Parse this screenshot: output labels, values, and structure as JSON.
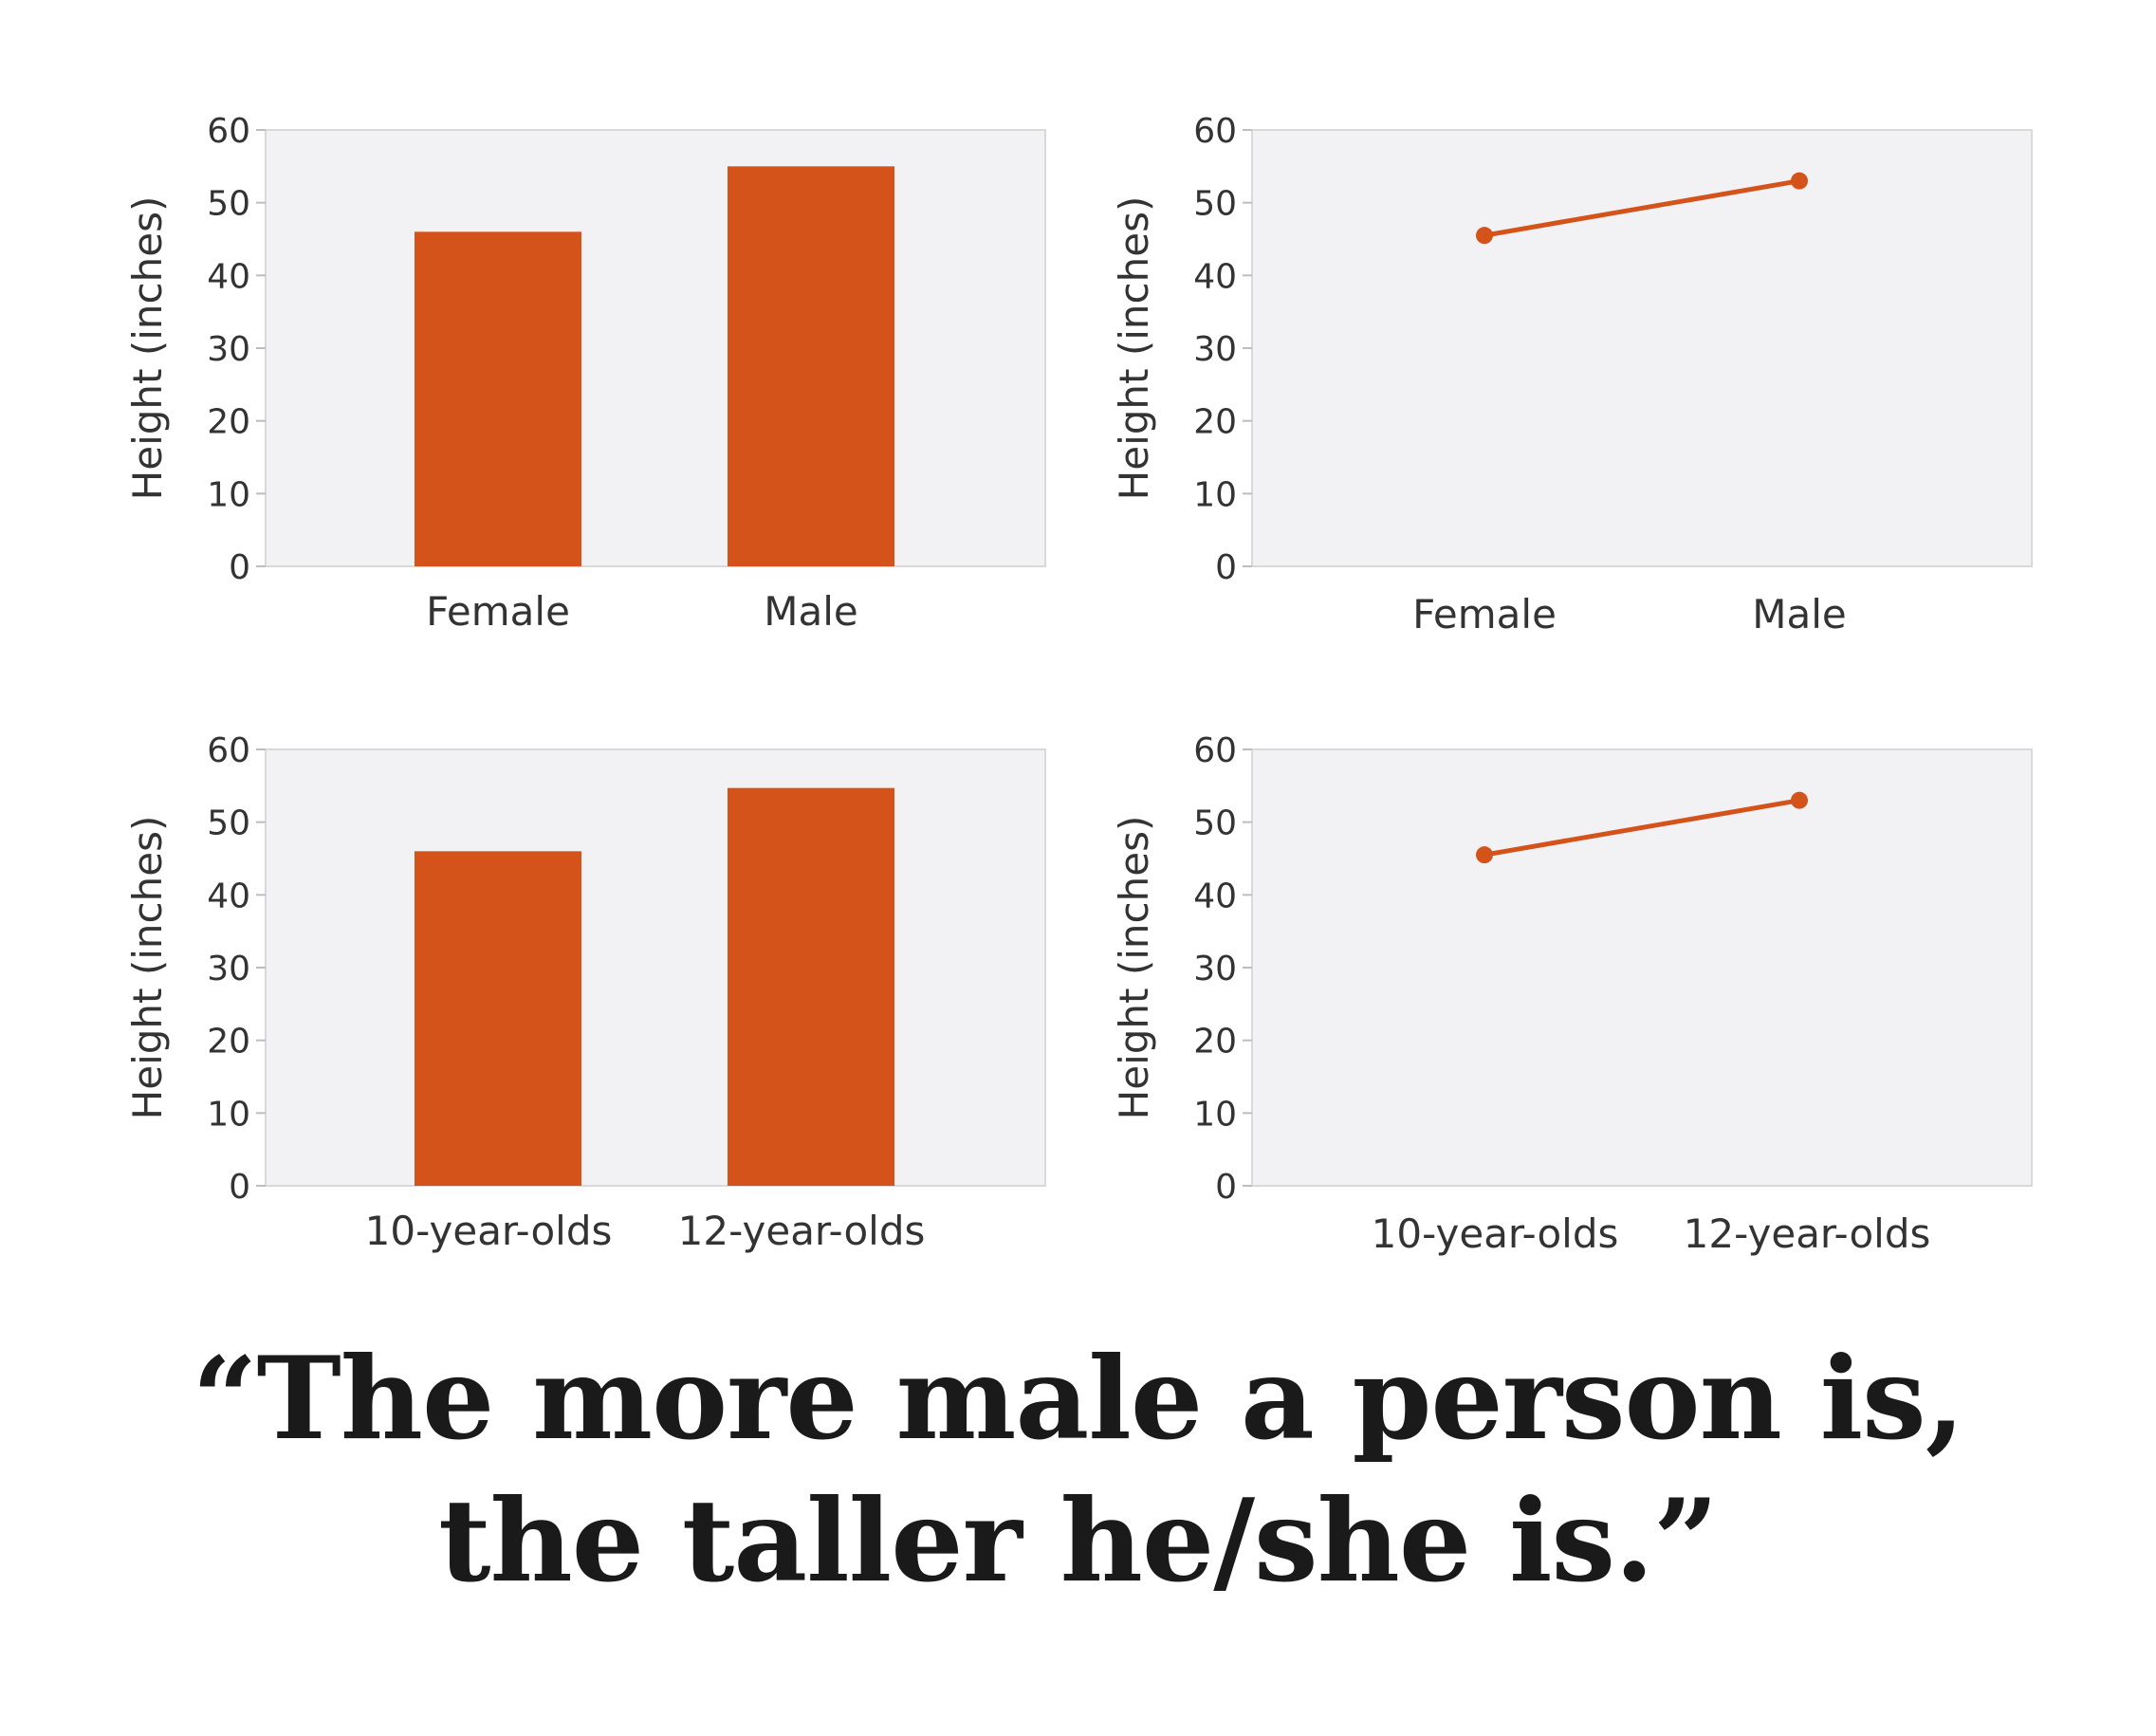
{
  "colors": {
    "accent": "#d4531a",
    "plot_background": "#f2f2f4",
    "plot_border": "#d9d9d9",
    "text": "#333333"
  },
  "chart_data": [
    {
      "type": "bar",
      "categories": [
        "Female",
        "Male"
      ],
      "values": [
        46,
        55
      ],
      "ylabel": "Height (inches)",
      "ylim": [
        0,
        60
      ],
      "yticks": [
        "0",
        "10",
        "20",
        "30",
        "40",
        "50",
        "60"
      ],
      "grid": false
    },
    {
      "type": "line",
      "categories": [
        "Female",
        "Male"
      ],
      "values": [
        45.5,
        53
      ],
      "ylabel": "Height (inches)",
      "ylim": [
        0,
        60
      ],
      "yticks": [
        "0",
        "10",
        "20",
        "30",
        "40",
        "50",
        "60"
      ],
      "grid": false
    },
    {
      "type": "bar",
      "categories": [
        "10-year-olds",
        "12-year-olds"
      ],
      "values": [
        46,
        54.7
      ],
      "ylabel": "Height (inches)",
      "ylim": [
        0,
        60
      ],
      "yticks": [
        "0",
        "10",
        "20",
        "30",
        "40",
        "50",
        "60"
      ],
      "grid": false
    },
    {
      "type": "line",
      "categories": [
        "10-year-olds",
        "12-year-olds"
      ],
      "values": [
        45.5,
        53
      ],
      "ylabel": "Height (inches)",
      "ylim": [
        0,
        60
      ],
      "yticks": [
        "0",
        "10",
        "20",
        "30",
        "40",
        "50",
        "60"
      ],
      "grid": false
    }
  ],
  "quote": {
    "line1": "“The more male a person is,",
    "line2": "the taller he/she is.”"
  }
}
